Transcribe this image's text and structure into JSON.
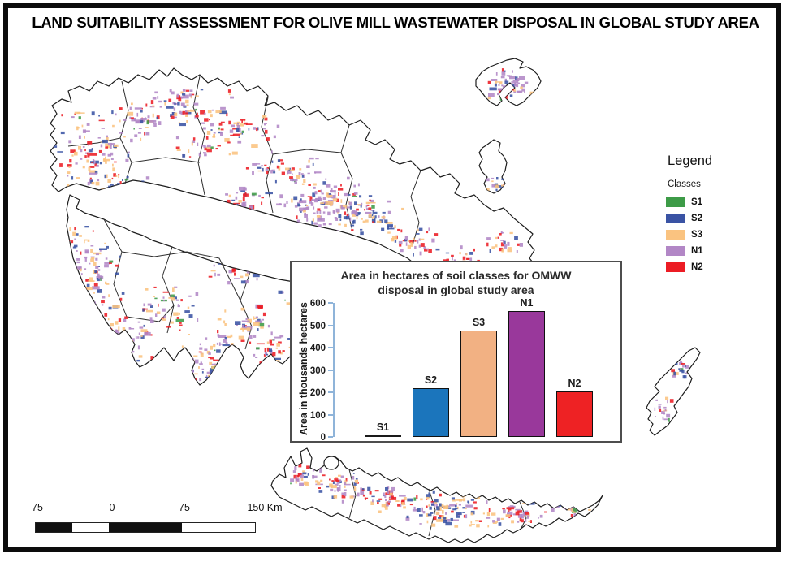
{
  "title": "LAND SUITABILITY ASSESSMENT FOR OLIVE MILL WASTEWATER DISPOSAL IN GLOBAL STUDY AREA",
  "legend": {
    "title": "Legend",
    "subtitle": "Classes",
    "classes": [
      {
        "label": "S1",
        "color": "#3D9B47"
      },
      {
        "label": "S2",
        "color": "#3A53A4"
      },
      {
        "label": "S3",
        "color": "#FAC380"
      },
      {
        "label": "N1",
        "color": "#B287C6"
      },
      {
        "label": "N2",
        "color": "#EC1C24"
      }
    ]
  },
  "chart_data": {
    "type": "bar",
    "title": "Area in hectares of soil classes for OMWW disposal in global study area",
    "categories": [
      "S1",
      "S2",
      "S3",
      "N1",
      "N2"
    ],
    "values": [
      8,
      220,
      478,
      565,
      205
    ],
    "colors": [
      "#1a1a1a",
      "#1B75BC",
      "#F2B183",
      "#99389B",
      "#EE2224"
    ],
    "xlabel": "",
    "ylabel": "Area in thousands hectares",
    "ylim": [
      0,
      600
    ],
    "ytick_step": 100,
    "grid": false,
    "legend_position": "none",
    "axis_color": "#8FB4D9"
  },
  "scale_bar": {
    "labels": [
      "75",
      "0",
      "75",
      "150 Km"
    ],
    "segment_colors": [
      "#111111",
      "#ffffff",
      "#111111",
      "#ffffff"
    ]
  }
}
